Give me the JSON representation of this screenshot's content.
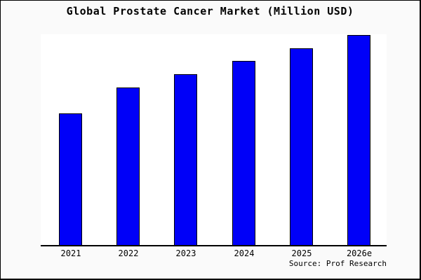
{
  "page": {
    "background_color": "#fafafa",
    "plot_background_color": "#ffffff",
    "frame_border_color": "#000000"
  },
  "chart_data": {
    "type": "bar",
    "title": "Global Prostate Cancer Market (Million USD)",
    "categories": [
      "2021",
      "2022",
      "2023",
      "2024",
      "2025",
      "2026e"
    ],
    "values": [
      189,
      226,
      245,
      264,
      282,
      301
    ],
    "values_unit": "relative (y-axis unlabeled, estimated from bar heights)",
    "ylim": [
      0,
      302
    ],
    "xlabel": "",
    "ylabel": "",
    "grid": false,
    "legend": false,
    "y_axis_ticks_visible": false,
    "bar_color": "#0000f8",
    "bar_border_color": "#000000",
    "source_note": "Source: Prof Research"
  }
}
